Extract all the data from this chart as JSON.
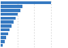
{
  "values": [
    166.6,
    72.9,
    65.0,
    57.0,
    50.0,
    42.0,
    35.0,
    29.0,
    24.0,
    18.0,
    13.0,
    7.0
  ],
  "bar_color": "#3579c1",
  "background_color": "#ffffff",
  "grid_color": "#c8c8c8",
  "xlim_max": 220,
  "bar_height": 0.82,
  "figwidth": 1.0,
  "figheight": 0.71,
  "dpi": 100
}
